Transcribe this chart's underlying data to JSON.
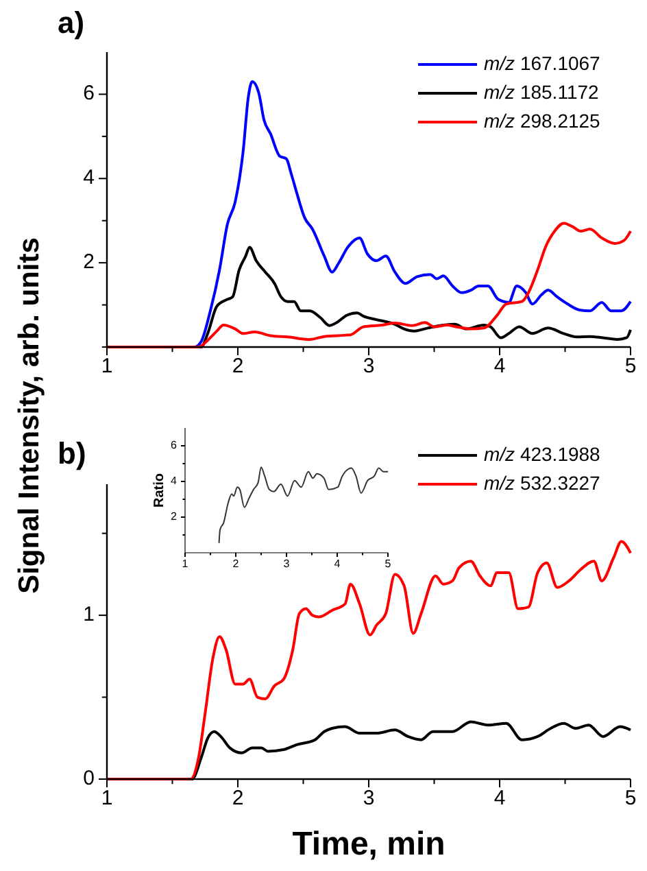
{
  "chart_data": [
    {
      "type": "line",
      "title": "a)",
      "ylabel": "Signal Intensity, arb. units",
      "xlim": [
        1,
        5
      ],
      "xticks": [
        1,
        {
          "value": 1.5,
          "label": null
        },
        2,
        {
          "value": 2.5,
          "label": null
        },
        3,
        {
          "value": 3.5,
          "label": null
        },
        4,
        {
          "value": 4.5,
          "label": null
        },
        5
      ],
      "ylim": [
        0,
        7
      ],
      "yticks": [
        {
          "value": 0,
          "label": null
        },
        {
          "value": 1,
          "label": null
        },
        2,
        {
          "value": 3,
          "label": null
        },
        4,
        {
          "value": 5,
          "label": null
        },
        6
      ],
      "legend": "top right",
      "grid": false,
      "line_style": "solid",
      "series": [
        {
          "name": "m/z 167.1067",
          "color": "#0000ff",
          "x": [
            1,
            1.67,
            1.72,
            1.79,
            1.86,
            1.92,
            1.98,
            2.04,
            2.08,
            2.11,
            2.16,
            2.2,
            2.25,
            2.32,
            2.37,
            2.41,
            2.45,
            2.51,
            2.57,
            2.66,
            2.72,
            2.77,
            2.84,
            2.93,
            2.99,
            3.06,
            3.13,
            3.2,
            3.28,
            3.37,
            3.47,
            3.52,
            3.57,
            3.64,
            3.71,
            3.78,
            3.84,
            3.91,
            3.99,
            4.07,
            4.13,
            4.2,
            4.25,
            4.32,
            4.37,
            4.44,
            4.52,
            4.61,
            4.69,
            4.78,
            4.85,
            4.93,
            5
          ],
          "values": [
            0,
            0,
            0.13,
            0.86,
            1.83,
            2.91,
            3.45,
            4.63,
            5.93,
            6.3,
            6.03,
            5.39,
            5.06,
            4.53,
            4.47,
            4.09,
            3.66,
            3.07,
            2.8,
            2.16,
            1.78,
            1.99,
            2.37,
            2.59,
            2.21,
            2.05,
            2.16,
            1.78,
            1.51,
            1.67,
            1.72,
            1.62,
            1.69,
            1.45,
            1.29,
            1.35,
            1.45,
            1.45,
            1.13,
            1.06,
            1.45,
            1.29,
            1.02,
            1.24,
            1.35,
            1.19,
            1.02,
            0.88,
            0.86,
            1.06,
            0.86,
            0.86,
            1.08
          ]
        },
        {
          "name": "m/z 185.1172",
          "color": "#000000",
          "x": [
            1,
            1.72,
            1.77,
            1.84,
            1.92,
            1.96,
            2.01,
            2.06,
            2.09,
            2.14,
            2.21,
            2.28,
            2.33,
            2.38,
            2.43,
            2.48,
            2.55,
            2.63,
            2.7,
            2.76,
            2.83,
            2.91,
            2.96,
            3.06,
            3.2,
            3.27,
            3.35,
            3.45,
            3.57,
            3.66,
            3.74,
            3.88,
            3.93,
            4.01,
            4.07,
            4.15,
            4.25,
            4.37,
            4.49,
            4.59,
            4.69,
            4.79,
            4.9,
            4.97,
            5
          ],
          "values": [
            0,
            0,
            0.32,
            0.97,
            1.13,
            1.19,
            1.83,
            2.16,
            2.37,
            2.05,
            1.78,
            1.51,
            1.19,
            1.08,
            1.08,
            0.86,
            0.86,
            0.7,
            0.51,
            0.59,
            0.75,
            0.81,
            0.73,
            0.65,
            0.54,
            0.43,
            0.38,
            0.45,
            0.52,
            0.54,
            0.43,
            0.52,
            0.48,
            0.22,
            0.32,
            0.48,
            0.32,
            0.45,
            0.32,
            0.24,
            0.25,
            0.22,
            0.18,
            0.22,
            0.41
          ]
        },
        {
          "name": "m/z 298.2125",
          "color": "#ff0000",
          "x": [
            1,
            1.7,
            1.77,
            1.84,
            1.89,
            1.98,
            2.04,
            2.13,
            2.25,
            2.38,
            2.55,
            2.66,
            2.86,
            2.96,
            3.1,
            3.2,
            3.33,
            3.43,
            3.5,
            3.6,
            3.67,
            3.78,
            3.88,
            3.98,
            4.05,
            4.17,
            4.22,
            4.29,
            4.35,
            4.42,
            4.49,
            4.56,
            4.62,
            4.69,
            4.78,
            4.88,
            4.95,
            5
          ],
          "values": [
            0,
            0,
            0.16,
            0.38,
            0.52,
            0.43,
            0.32,
            0.36,
            0.27,
            0.24,
            0.18,
            0.25,
            0.29,
            0.48,
            0.52,
            0.57,
            0.51,
            0.58,
            0.48,
            0.52,
            0.48,
            0.43,
            0.45,
            0.75,
            1.02,
            1.08,
            1.29,
            1.83,
            2.37,
            2.75,
            2.94,
            2.85,
            2.75,
            2.8,
            2.59,
            2.46,
            2.53,
            2.75
          ]
        }
      ]
    },
    {
      "type": "line",
      "title": "b)",
      "xlabel": "Time, min",
      "xlim": [
        1,
        5
      ],
      "xticks": [
        1,
        {
          "value": 1.5,
          "label": null
        },
        2,
        {
          "value": 2.5,
          "label": null
        },
        3,
        {
          "value": 3.5,
          "label": null
        },
        4,
        {
          "value": 4.5,
          "label": null
        },
        5
      ],
      "ylim": [
        0,
        1.8
      ],
      "yticks": [
        0,
        {
          "value": 0.5,
          "label": null
        },
        1,
        {
          "value": 1.5,
          "label": null
        }
      ],
      "legend": "top right",
      "grid": false,
      "line_style": "solid",
      "series": [
        {
          "name": "m/z 423.1988",
          "color": "#000000",
          "x": [
            1,
            1.65,
            1.72,
            1.77,
            1.82,
            1.87,
            1.94,
            2.03,
            2.11,
            2.18,
            2.23,
            2.35,
            2.45,
            2.59,
            2.66,
            2.72,
            2.82,
            2.93,
            3.06,
            3.2,
            3.3,
            3.4,
            3.49,
            3.64,
            3.78,
            3.91,
            4.05,
            4.17,
            4.29,
            4.39,
            4.49,
            4.58,
            4.68,
            4.79,
            4.92,
            5
          ],
          "values": [
            0,
            0,
            0.13,
            0.25,
            0.29,
            0.26,
            0.19,
            0.16,
            0.19,
            0.19,
            0.17,
            0.18,
            0.21,
            0.24,
            0.29,
            0.31,
            0.32,
            0.28,
            0.28,
            0.3,
            0.26,
            0.24,
            0.29,
            0.29,
            0.35,
            0.33,
            0.34,
            0.24,
            0.26,
            0.31,
            0.34,
            0.31,
            0.33,
            0.26,
            0.32,
            0.3
          ]
        },
        {
          "name": "m/z 532.3227",
          "color": "#ff0000",
          "x": [
            1,
            1.64,
            1.7,
            1.75,
            1.81,
            1.86,
            1.91,
            1.98,
            2.04,
            2.09,
            2.15,
            2.21,
            2.28,
            2.35,
            2.42,
            2.47,
            2.52,
            2.57,
            2.62,
            2.72,
            2.82,
            2.86,
            2.93,
            3.01,
            3.06,
            3.13,
            3.2,
            3.27,
            3.34,
            3.4,
            3.51,
            3.57,
            3.64,
            3.69,
            3.78,
            3.85,
            3.93,
            3.98,
            4.07,
            4.14,
            4.22,
            4.29,
            4.36,
            4.44,
            4.53,
            4.62,
            4.72,
            4.78,
            4.87,
            4.93,
            5
          ],
          "values": [
            0,
            0,
            0.13,
            0.4,
            0.74,
            0.87,
            0.79,
            0.58,
            0.58,
            0.61,
            0.5,
            0.49,
            0.57,
            0.61,
            0.79,
            1.01,
            1.04,
            1,
            0.99,
            1.03,
            1.07,
            1.19,
            1.07,
            0.88,
            0.94,
            1.01,
            1.25,
            1.18,
            0.89,
            1.01,
            1.24,
            1.19,
            1.21,
            1.29,
            1.33,
            1.24,
            1.18,
            1.26,
            1.26,
            1.04,
            1.05,
            1.26,
            1.32,
            1.17,
            1.21,
            1.28,
            1.33,
            1.21,
            1.35,
            1.45,
            1.38
          ]
        }
      ]
    },
    {
      "type": "line",
      "ylabel": "Ratio",
      "xlim": [
        1,
        5
      ],
      "xticks": [
        1,
        {
          "value": 1.5,
          "label": null
        },
        2,
        {
          "value": 2.5,
          "label": null
        },
        3,
        {
          "value": 3.5,
          "label": null
        },
        4,
        {
          "value": 4.5,
          "label": null
        },
        5
      ],
      "ylim": [
        0,
        7
      ],
      "yticks": [
        {
          "value": 1,
          "label": null
        },
        2,
        {
          "value": 3,
          "label": null
        },
        4,
        {
          "value": 5,
          "label": null
        },
        6
      ],
      "grid": false,
      "line_style": "solid",
      "series": [
        {
          "color": "#333333",
          "x": [
            1.67,
            1.69,
            1.76,
            1.85,
            1.92,
            1.96,
            2.03,
            2.08,
            2.17,
            2.26,
            2.35,
            2.44,
            2.5,
            2.57,
            2.66,
            2.75,
            2.89,
            3.02,
            3.16,
            3.29,
            3.43,
            3.52,
            3.6,
            3.74,
            3.83,
            4.01,
            4.1,
            4.28,
            4.37,
            4.47,
            4.6,
            4.73,
            4.82,
            4.91,
            5
          ],
          "values": [
            0.55,
            1.3,
            1.68,
            2.8,
            3.3,
            3.18,
            3.68,
            3.55,
            2.55,
            3.05,
            3.55,
            3.93,
            4.8,
            4.3,
            3.55,
            3.43,
            3.85,
            3.18,
            4.05,
            3.68,
            4.55,
            4.18,
            4.43,
            4.18,
            3.55,
            3.68,
            4.3,
            4.75,
            4.3,
            3.35,
            4.05,
            4.3,
            4.75,
            4.55,
            4.55
          ]
        }
      ]
    }
  ]
}
